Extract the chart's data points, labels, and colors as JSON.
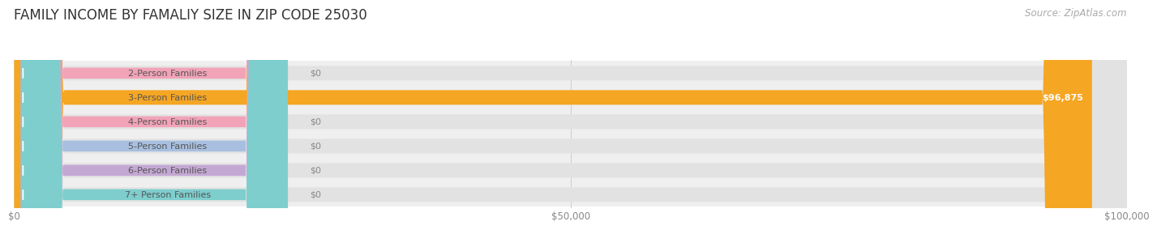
{
  "title": "FAMILY INCOME BY FAMALIY SIZE IN ZIP CODE 25030",
  "source": "Source: ZipAtlas.com",
  "categories": [
    "2-Person Families",
    "3-Person Families",
    "4-Person Families",
    "5-Person Families",
    "6-Person Families",
    "7+ Person Families"
  ],
  "values": [
    0,
    96875,
    0,
    0,
    0,
    0
  ],
  "bar_colors": [
    "#f2a3b8",
    "#f5a623",
    "#f2a3b8",
    "#a8bfe0",
    "#c4a8d4",
    "#7ecece"
  ],
  "xlim": [
    0,
    100000
  ],
  "xticks": [
    0,
    50000,
    100000
  ],
  "xtick_labels": [
    "$0",
    "$50,000",
    "$100,000"
  ],
  "title_fontsize": 12,
  "label_fontsize": 8,
  "tick_fontsize": 8.5,
  "source_fontsize": 8.5,
  "bar_height": 0.6,
  "row_bg_color": "#efefef",
  "bar_bg_color": "#e2e2e2",
  "figure_bg_color": "#ffffff"
}
